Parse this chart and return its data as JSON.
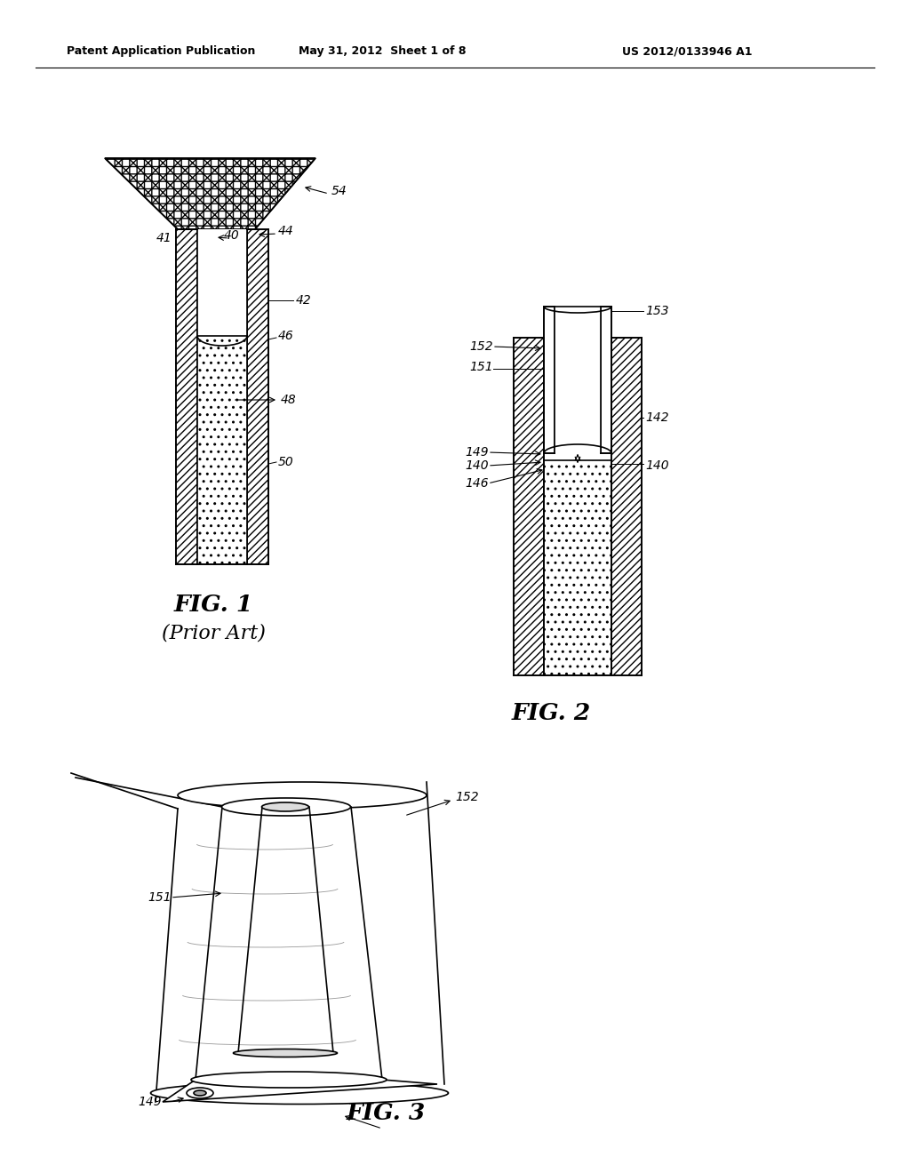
{
  "header_left": "Patent Application Publication",
  "header_mid": "May 31, 2012  Sheet 1 of 8",
  "header_right": "US 2012/0133946 A1",
  "fig1_label": "FIG. 1",
  "fig1_sublabel": "(Prior Art)",
  "fig2_label": "FIG. 2",
  "fig3_label": "FIG. 3",
  "bg_color": "#ffffff",
  "line_color": "#000000"
}
